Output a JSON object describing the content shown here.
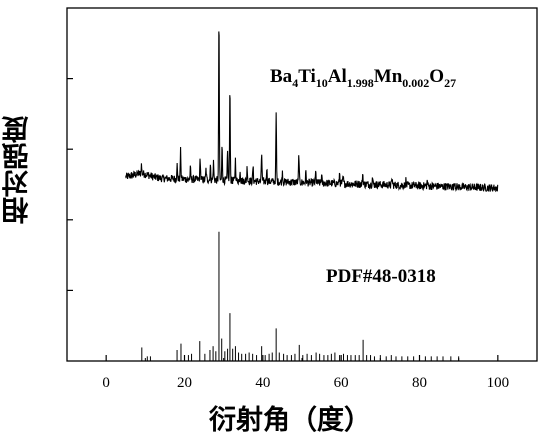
{
  "chart_data": {
    "type": "line",
    "xlabel": "衍射角（度）",
    "ylabel": "相对强度",
    "xlim": [
      -10,
      110
    ],
    "ylim": [
      0,
      100
    ],
    "x_ticks": [
      0,
      20,
      40,
      60,
      80,
      100
    ],
    "x_tick_labels": [
      "0",
      "20",
      "40",
      "60",
      "80",
      "100"
    ],
    "grid": false,
    "series": [
      {
        "name": "Ba4Ti10Al1.998Mn0.002O27",
        "label_parts": [
          {
            "t": "Ba",
            "s": false
          },
          {
            "t": "4",
            "s": true
          },
          {
            "t": "Ti",
            "s": false
          },
          {
            "t": "10",
            "s": true
          },
          {
            "t": "Al",
            "s": false
          },
          {
            "t": "1.998",
            "s": true
          },
          {
            "t": "Mn",
            "s": false
          },
          {
            "t": "0.002",
            "s": true
          },
          {
            "t": "O",
            "s": false
          },
          {
            "t": "27",
            "s": true
          }
        ],
        "type": "line",
        "x_range": [
          5,
          100
        ],
        "baseline": 52,
        "baseline_end": 49,
        "peaks": [
          {
            "x": 9.0,
            "h": 2.5
          },
          {
            "x": 18.1,
            "h": 4
          },
          {
            "x": 19.0,
            "h": 8
          },
          {
            "x": 21.5,
            "h": 3
          },
          {
            "x": 24.0,
            "h": 6
          },
          {
            "x": 25.5,
            "h": 3
          },
          {
            "x": 26.6,
            "h": 4
          },
          {
            "x": 27.4,
            "h": 5
          },
          {
            "x": 28.8,
            "h": 46
          },
          {
            "x": 29.6,
            "h": 10
          },
          {
            "x": 31.0,
            "h": 8
          },
          {
            "x": 31.6,
            "h": 26
          },
          {
            "x": 33.0,
            "h": 6
          },
          {
            "x": 34.2,
            "h": 3
          },
          {
            "x": 36.0,
            "h": 4
          },
          {
            "x": 37.5,
            "h": 4
          },
          {
            "x": 39.7,
            "h": 8
          },
          {
            "x": 41.0,
            "h": 4
          },
          {
            "x": 43.4,
            "h": 19
          },
          {
            "x": 45.0,
            "h": 3
          },
          {
            "x": 49.2,
            "h": 8
          },
          {
            "x": 51.0,
            "h": 3
          },
          {
            "x": 53.5,
            "h": 3
          },
          {
            "x": 55.0,
            "h": 2
          },
          {
            "x": 59.6,
            "h": 3
          },
          {
            "x": 60.5,
            "h": 2
          },
          {
            "x": 65.5,
            "h": 3
          },
          {
            "x": 68.0,
            "h": 2
          },
          {
            "x": 73.0,
            "h": 2
          },
          {
            "x": 76.5,
            "h": 1.5
          },
          {
            "x": 82.0,
            "h": 1.5
          },
          {
            "x": 89.0,
            "h": 1.5
          }
        ]
      },
      {
        "name": "PDF#48-0318",
        "type": "stick",
        "sticks": [
          [
            9.1,
            9
          ],
          [
            10.5,
            2
          ],
          [
            11.3,
            2
          ],
          [
            18.1,
            7
          ],
          [
            19.1,
            12
          ],
          [
            21.0,
            3
          ],
          [
            21.8,
            4
          ],
          [
            23.9,
            14
          ],
          [
            25.2,
            4
          ],
          [
            26.5,
            7
          ],
          [
            27.3,
            10
          ],
          [
            28.0,
            6
          ],
          [
            28.8,
            100
          ],
          [
            29.5,
            16
          ],
          [
            30.3,
            6
          ],
          [
            31.0,
            8
          ],
          [
            31.6,
            36
          ],
          [
            32.3,
            8
          ],
          [
            33.0,
            10
          ],
          [
            33.8,
            5
          ],
          [
            34.6,
            4
          ],
          [
            35.6,
            4
          ],
          [
            36.5,
            5
          ],
          [
            37.4,
            4
          ],
          [
            38.4,
            3
          ],
          [
            39.7,
            10
          ],
          [
            40.6,
            3
          ],
          [
            41.6,
            4
          ],
          [
            42.4,
            5
          ],
          [
            43.4,
            24
          ],
          [
            44.2,
            5
          ],
          [
            45.3,
            4
          ],
          [
            46.2,
            3
          ],
          [
            47.3,
            3
          ],
          [
            48.2,
            4
          ],
          [
            49.3,
            11
          ],
          [
            50.2,
            3
          ],
          [
            51.3,
            4
          ],
          [
            52.4,
            3
          ],
          [
            53.6,
            5
          ],
          [
            54.5,
            4
          ],
          [
            55.6,
            3
          ],
          [
            56.6,
            3
          ],
          [
            57.5,
            4
          ],
          [
            58.4,
            5
          ],
          [
            59.6,
            3
          ],
          [
            60.6,
            4
          ],
          [
            61.6,
            3
          ],
          [
            62.5,
            3
          ],
          [
            63.6,
            3
          ],
          [
            64.6,
            3
          ],
          [
            65.6,
            15
          ],
          [
            66.5,
            3
          ],
          [
            67.5,
            3
          ],
          [
            68.5,
            2
          ],
          [
            70.0,
            3
          ],
          [
            71.5,
            2
          ],
          [
            72.8,
            3
          ],
          [
            74.0,
            2
          ],
          [
            75.5,
            2
          ],
          [
            77.0,
            2
          ],
          [
            78.5,
            2
          ],
          [
            80.0,
            2
          ],
          [
            81.5,
            2
          ],
          [
            83.0,
            2
          ],
          [
            84.5,
            2
          ],
          [
            86.0,
            2
          ],
          [
            88.0,
            2
          ],
          [
            90.0,
            2
          ]
        ],
        "stick_scale": 36
      }
    ]
  },
  "colors": {
    "line": "#000000",
    "sticks": "#000000",
    "frame": "#000000",
    "background": "#ffffff"
  }
}
